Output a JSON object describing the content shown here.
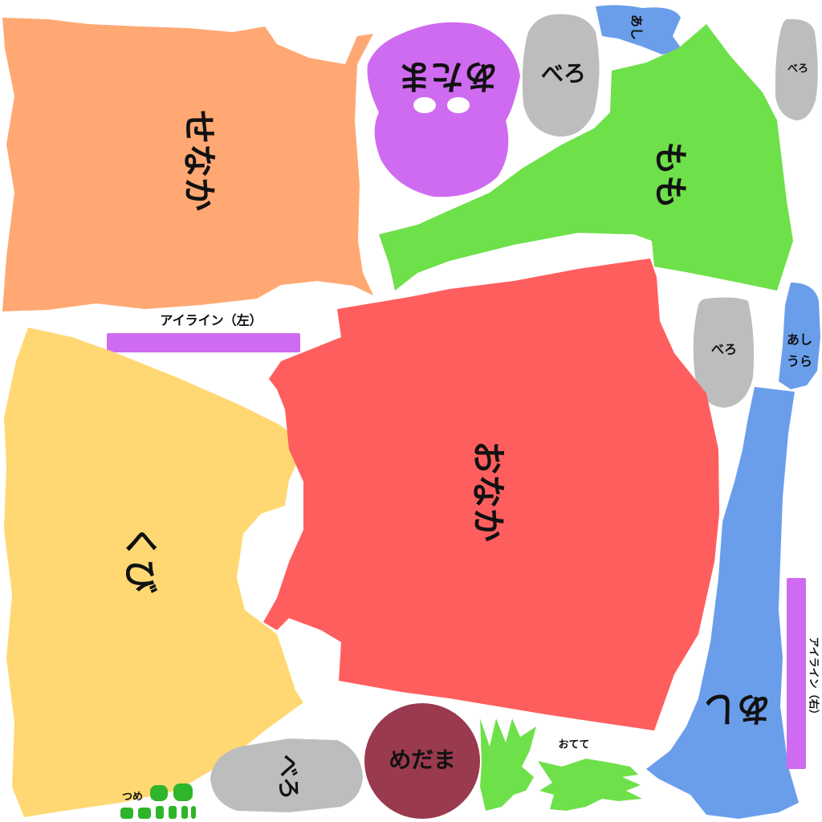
{
  "colors": {
    "senaka": "#FFA873",
    "atama": "#CF6BF0",
    "bero": "#BDBDBD",
    "ashi": "#6A9EEB",
    "momo": "#6EE04A",
    "kubi": "#FFD873",
    "onaka": "#FF5E5E",
    "medama": "#9A3A4E",
    "otete": "#6EE04A",
    "tsume": "#2FB52A",
    "eyeline": "#CF6BF0"
  },
  "parts": {
    "senaka": "せなか",
    "atama": "あたま",
    "bero_1": "べろ",
    "ashi_top": "あし",
    "bero_2": "べろ",
    "momo": "もも",
    "eyeline_left": "アイライン（左）",
    "bero_3": "べろ",
    "ashiura": [
      "あし",
      "うら"
    ],
    "kubi": "くび",
    "onaka": "おなか",
    "ashi_bottom": "あし",
    "eyeline_right": "アイライン（右）",
    "bero_4": "べろ",
    "medama": "めだま",
    "otete": "おてて",
    "tsume": "つめ"
  }
}
